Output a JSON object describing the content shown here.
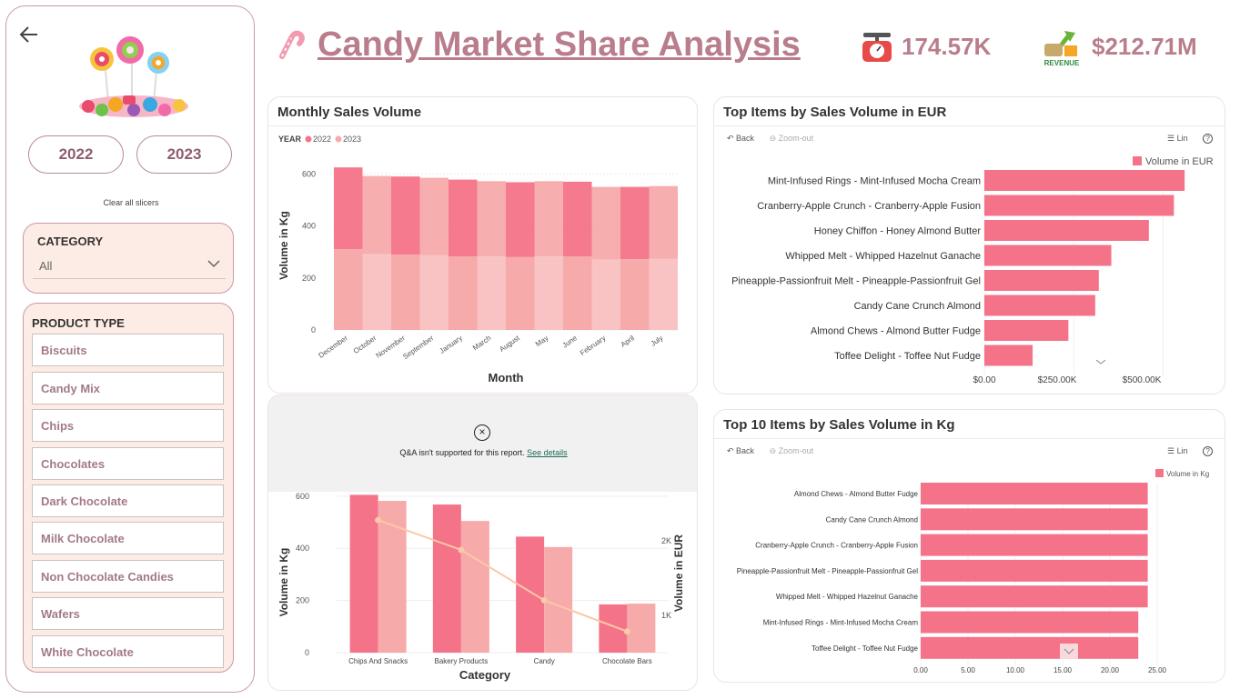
{
  "sidebar": {
    "years": [
      "2022",
      "2023"
    ],
    "clear_label": "Clear all slicers",
    "category": {
      "title": "CATEGORY",
      "selected": "All"
    },
    "product_type": {
      "title": "PRODUCT TYPE",
      "items": [
        "Biscuits",
        "Candy Mix",
        "Chips",
        "Chocolates",
        "Dark Chocolate",
        "Milk Chocolate",
        "Non Chocolate Candies",
        "Wafers",
        "White Chocolate"
      ]
    }
  },
  "header": {
    "title": "Candy Market Share Analysis",
    "kpi_volume": "174.57K",
    "kpi_revenue": "$212.71M",
    "revenue_badge": "REVENUE"
  },
  "colors": {
    "accent": "#b97d8b",
    "series_2022": "#f47388",
    "series_2023": "#f7aaaa",
    "line": "#f9c9a8"
  },
  "toolbar": {
    "back": "Back",
    "zoom_out": "Zoom-out",
    "lin": "Lin"
  },
  "qa": {
    "message": "Q&A isn't supported for this report.",
    "link": "See details"
  },
  "chart_data": [
    {
      "type": "area",
      "title": "Monthly Sales Volume",
      "legend_title": "YEAR",
      "xlabel": "Month",
      "ylabel": "Volume in Kg",
      "categories": [
        "December",
        "October",
        "November",
        "September",
        "January",
        "March",
        "August",
        "May",
        "June",
        "February",
        "April",
        "July"
      ],
      "series": [
        {
          "name": "2022",
          "values": [
            315,
            300,
            300,
            298,
            295,
            290,
            288,
            290,
            288,
            280,
            278,
            280
          ]
        },
        {
          "name": "2023",
          "values": [
            310,
            292,
            290,
            287,
            283,
            282,
            280,
            282,
            282,
            270,
            272,
            273
          ]
        }
      ],
      "yticks": [
        0,
        200,
        400,
        600
      ],
      "ylim": [
        0,
        650
      ],
      "stacked": true
    },
    {
      "type": "bar",
      "title": "",
      "xlabel": "Category",
      "ylabel": "Volume in Kg",
      "y2label": "Volume in EUR",
      "categories": [
        "Chips And Snacks",
        "Bakery Products",
        "Candy",
        "Chocolate Bars"
      ],
      "series": [
        {
          "name": "2022",
          "values": [
            605,
            568,
            445,
            185
          ]
        },
        {
          "name": "2023",
          "values": [
            582,
            505,
            405,
            188
          ]
        }
      ],
      "line": {
        "values": [
          2600,
          2150,
          1390,
          920
        ]
      },
      "yticks": [
        0,
        200,
        400,
        600
      ],
      "y2ticks": [
        "1K",
        "2K"
      ],
      "ylim": [
        0,
        610
      ]
    },
    {
      "type": "bar",
      "orientation": "horizontal",
      "title": "Top Items by Sales Volume in EUR",
      "legend": "Volume in EUR",
      "categories": [
        "Mint-Infused Rings - Mint-Infused Mocha Cream",
        "Cranberry-Apple Crunch - Cranberry-Apple Fusion",
        "Honey Chiffon - Honey Almond Butter",
        "Whipped Melt - Whipped Hazelnut Ganache",
        "Pineapple-Passionfruit Melt - Pineapple-Passionfruit Gel",
        "Candy Cane Crunch Almond",
        "Almond Chews - Almond Butter Fudge",
        "Toffee Delight - Toffee Nut Fudge"
      ],
      "values": [
        560000,
        530000,
        460000,
        355000,
        320000,
        310000,
        235000,
        135000
      ],
      "xticks": [
        "$0.00",
        "$250.00K",
        "$500.00K"
      ],
      "xlim": [
        0,
        580000
      ]
    },
    {
      "type": "bar",
      "orientation": "horizontal",
      "title": "Top 10 Items by Sales Volume in Kg",
      "legend": "Volume in Kg",
      "categories": [
        "Almond Chews - Almond Butter Fudge",
        "Candy Cane Crunch Almond",
        "Cranberry-Apple Crunch - Cranberry-Apple Fusion",
        "Pineapple-Passionfruit Melt - Pineapple-Passionfruit Gel",
        "Whipped Melt - Whipped Hazelnut Ganache",
        "Mint-Infused Rings - Mint-Infused Mocha Cream",
        "Toffee Delight - Toffee Nut Fudge"
      ],
      "values": [
        24,
        24,
        24,
        24,
        24,
        23,
        23
      ],
      "xticks": [
        "0.00",
        "5.00",
        "10.00",
        "15.00",
        "20.00",
        "25.00"
      ],
      "xlim": [
        0,
        30
      ]
    }
  ]
}
